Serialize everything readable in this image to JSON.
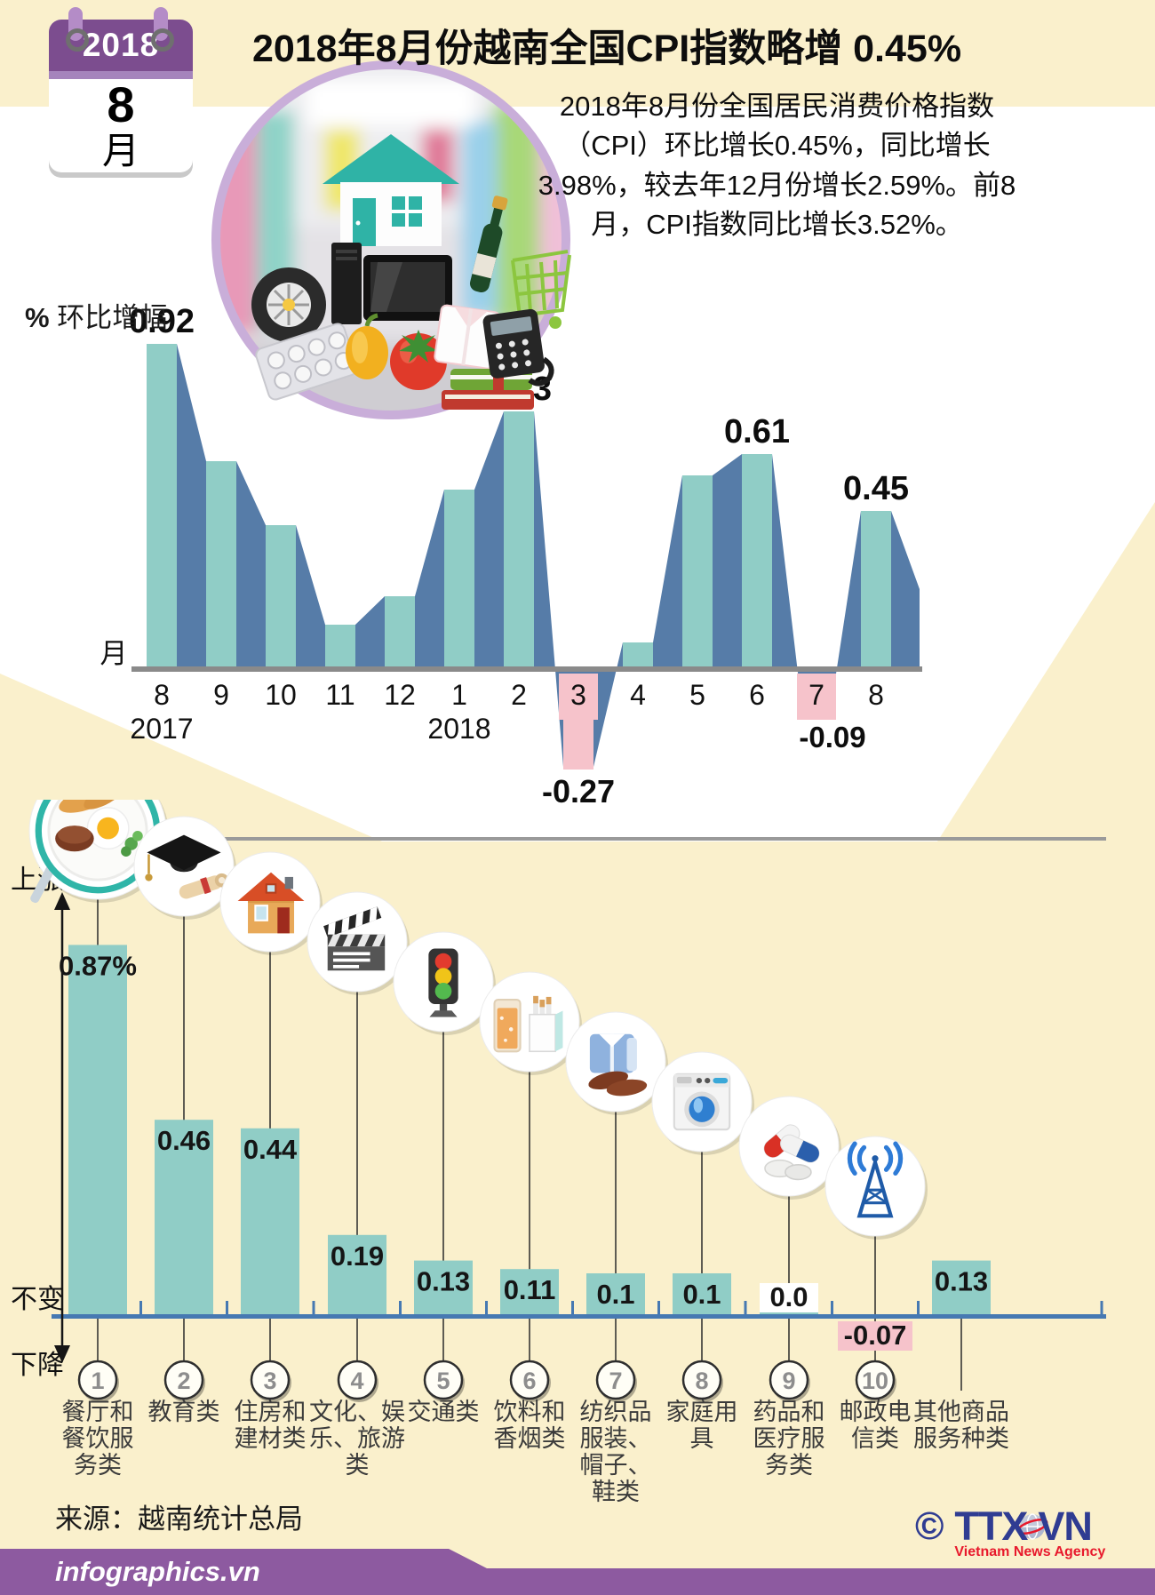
{
  "calendar": {
    "year": "2018",
    "month": "8",
    "month_unit": "月"
  },
  "title": "2018年8月份越南全国CPI指数略增 0.45%",
  "intro": "2018年8月份全国居民消费价格指数（CPI）环比增长0.45%，同比增长3.98%，较去年12月份增长2.59%。前8月，CPI指数同比增长3.52%。",
  "chart_data": [
    {
      "type": "bar",
      "name": "monthly-cpi-change",
      "unit_label_pct": "%",
      "unit_label_text": "环比增幅",
      "x_axis_label": "月",
      "months": [
        "8",
        "9",
        "10",
        "11",
        "12",
        "1",
        "2",
        "3",
        "4",
        "5",
        "6",
        "7",
        "8"
      ],
      "values": [
        0.92,
        0.59,
        0.41,
        0.13,
        0.21,
        0.51,
        0.73,
        -0.27,
        0.08,
        0.55,
        0.61,
        -0.09,
        0.45
      ],
      "data_labels": [
        {
          "index": 0,
          "text": "0.92",
          "bold": false
        },
        {
          "index": 6,
          "text": "0.73",
          "bold": false
        },
        {
          "index": 7,
          "text": "-0.27",
          "bold": false
        },
        {
          "index": 10,
          "text": "0.61",
          "bold": false
        },
        {
          "index": 11,
          "text": "-0.09",
          "bold": false
        },
        {
          "index": 12,
          "text": "0.45",
          "bold": true
        }
      ],
      "year_marks": [
        {
          "index": 0,
          "label": "2017"
        },
        {
          "index": 5,
          "label": "2018"
        }
      ],
      "ylim": [
        -0.35,
        1.0
      ],
      "grid": false,
      "negative_highlight_months": [
        "3",
        "7"
      ]
    },
    {
      "type": "bar",
      "name": "category-cpi-change-august-2018",
      "axis_side_labels": {
        "up": "上涨",
        "flat": "不变",
        "down": "下降"
      },
      "categories": [
        {
          "num": "1",
          "label_lines": [
            "餐厅和",
            "餐饮服",
            "务类"
          ],
          "value": 0.87,
          "value_label": "0.87%",
          "icon": "food-plate-icon"
        },
        {
          "num": "2",
          "label_lines": [
            "教育类"
          ],
          "value": 0.46,
          "value_label": "0.46",
          "icon": "graduation-cap-icon"
        },
        {
          "num": "3",
          "label_lines": [
            "住房和",
            "建材类"
          ],
          "value": 0.44,
          "value_label": "0.44",
          "icon": "house-icon"
        },
        {
          "num": "4",
          "label_lines": [
            "文化、娱",
            "乐、旅游",
            "类"
          ],
          "value": 0.19,
          "value_label": "0.19",
          "icon": "clapperboard-icon"
        },
        {
          "num": "5",
          "label_lines": [
            "交通类"
          ],
          "value": 0.13,
          "value_label": "0.13",
          "icon": "traffic-light-icon"
        },
        {
          "num": "6",
          "label_lines": [
            "饮料和",
            "香烟类"
          ],
          "value": 0.11,
          "value_label": "0.11",
          "icon": "drink-and-cigarettes-icon"
        },
        {
          "num": "7",
          "label_lines": [
            "纺织品",
            "服装、",
            "帽子、",
            "鞋类"
          ],
          "value": 0.1,
          "value_label": "0.1",
          "icon": "clothing-and-shoes-icon"
        },
        {
          "num": "8",
          "label_lines": [
            "家庭用",
            "具"
          ],
          "value": 0.1,
          "value_label": "0.1",
          "icon": "washing-machine-icon"
        },
        {
          "num": "9",
          "label_lines": [
            "药品和",
            "医疗服",
            "务类"
          ],
          "value": 0.0,
          "value_label": "0.0",
          "icon": "medicine-capsules-icon",
          "label_style": "boxed-white"
        },
        {
          "num": "10",
          "label_lines": [
            "邮政电",
            "信类"
          ],
          "value": -0.07,
          "value_label": "-0.07",
          "icon": "radio-tower-icon",
          "label_style": "boxed-pink"
        },
        {
          "num": "",
          "label_lines": [
            "其他商品",
            "服务种类"
          ],
          "value": 0.13,
          "value_label": "0.13",
          "icon": ""
        }
      ]
    }
  ],
  "source": "来源：越南统计总局",
  "footer": {
    "brand": "infographics.vn"
  },
  "agency": {
    "copyright_symbol": "©",
    "logo_left": "TTX",
    "logo_right": "VN",
    "tagline": "Vietnam News Agency"
  },
  "colors": {
    "page_bg": "#FAF0CC",
    "teal_bar": "#90CDC6",
    "blue_side": "#567CA8",
    "pink_negative": "#F6C3CB",
    "axis_gray": "#8A8A8A",
    "axis_blue": "#4679B2",
    "footer_purple": "#8D5AA0",
    "calendar_purple": "#7C4D8F",
    "logo_blue": "#2F3C92",
    "logo_red": "#E8192C"
  }
}
